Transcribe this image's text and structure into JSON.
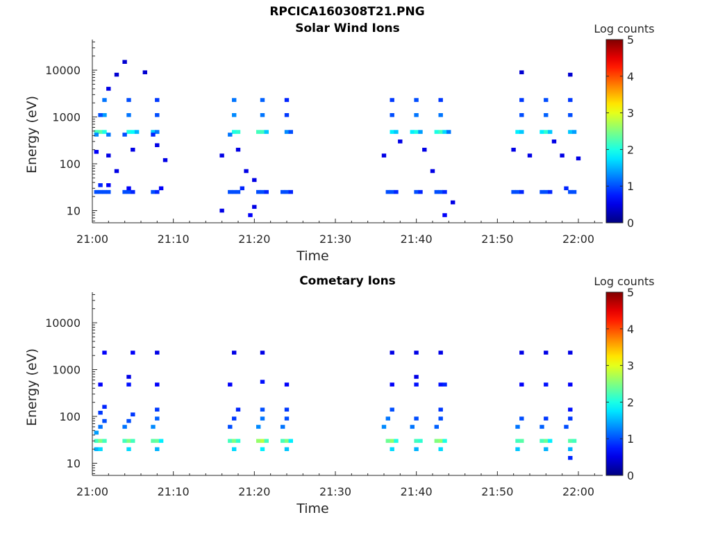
{
  "figure": {
    "title": "RPCICA160308T21.PNG"
  },
  "colors": {
    "axis": "#262626",
    "background": "#ffffff"
  },
  "chart_data": [
    {
      "type": "heatmap",
      "title": "Solar Wind Ions",
      "xlabel": "Time",
      "ylabel": "Energy (eV)",
      "x_ticks": [
        "21:00",
        "21:10",
        "21:20",
        "21:30",
        "21:40",
        "21:50",
        "22:00"
      ],
      "y_ticks": [
        "10",
        "100",
        "1000",
        "10000"
      ],
      "xlim": [
        "21:00",
        "22:03"
      ],
      "ylim": [
        5.5,
        45000
      ],
      "yscale": "log",
      "grid": false,
      "colorbar": {
        "label": "Log counts",
        "ticks": [
          "0",
          "1",
          "2",
          "3",
          "4",
          "5"
        ],
        "range": [
          0,
          5
        ],
        "colormap": "jet"
      },
      "cells": [
        [
          "21:00.5",
          25,
          1
        ],
        [
          "21:01",
          25,
          1
        ],
        [
          "21:01.5",
          25,
          1
        ],
        [
          "21:02",
          25,
          1
        ],
        [
          "21:01",
          35,
          0.8
        ],
        [
          "21:02",
          35,
          0.6
        ],
        [
          "21:04",
          25,
          1
        ],
        [
          "21:04.5",
          25,
          1
        ],
        [
          "21:05",
          25,
          0.8
        ],
        [
          "21:04.5",
          30,
          0.6
        ],
        [
          "21:07.5",
          25,
          1
        ],
        [
          "21:08",
          25,
          0.8
        ],
        [
          "21:08.5",
          30,
          0.6
        ],
        [
          "21:00.5",
          480,
          2.2
        ],
        [
          "21:01",
          480,
          2.3
        ],
        [
          "21:01.5",
          480,
          2.0
        ],
        [
          "21:00.5",
          420,
          1.3
        ],
        [
          "21:02",
          420,
          1.2
        ],
        [
          "21:04.5",
          480,
          2.0
        ],
        [
          "21:05",
          480,
          1.9
        ],
        [
          "21:05.5",
          480,
          1.5
        ],
        [
          "21:04",
          420,
          1.0
        ],
        [
          "21:07.5",
          480,
          1.6
        ],
        [
          "21:08",
          480,
          1.2
        ],
        [
          "21:07.5",
          420,
          0.8
        ],
        [
          "21:01.5",
          1100,
          1.4
        ],
        [
          "21:01",
          1100,
          1.0
        ],
        [
          "21:04.5",
          1100,
          1.2
        ],
        [
          "21:08",
          1100,
          1.0
        ],
        [
          "21:01.5",
          2300,
          1.2
        ],
        [
          "21:04.5",
          2300,
          1.0
        ],
        [
          "21:08",
          2300,
          0.9
        ],
        [
          "21:00.5",
          180,
          0.6
        ],
        [
          "21:02",
          150,
          0.5
        ],
        [
          "21:03",
          70,
          0.5
        ],
        [
          "21:05",
          200,
          0.5
        ],
        [
          "21:08",
          250,
          0.5
        ],
        [
          "21:09",
          120,
          0.5
        ],
        [
          "21:02",
          4000,
          0.5
        ],
        [
          "21:03",
          8000,
          0.4
        ],
        [
          "21:04",
          15000,
          0.4
        ],
        [
          "21:06.5",
          9000,
          0.4
        ],
        [
          "21:17",
          25,
          1
        ],
        [
          "21:17.5",
          25,
          1
        ],
        [
          "21:18",
          25,
          1
        ],
        [
          "21:18.5",
          30,
          0.8
        ],
        [
          "21:20.5",
          25,
          1
        ],
        [
          "21:21",
          25,
          1
        ],
        [
          "21:21.5",
          25,
          0.8
        ],
        [
          "21:23.5",
          25,
          1
        ],
        [
          "21:24",
          25,
          1
        ],
        [
          "21:24.5",
          25,
          0.8
        ],
        [
          "21:17.5",
          480,
          2.0
        ],
        [
          "21:18",
          480,
          2.1
        ],
        [
          "21:17",
          420,
          1.2
        ],
        [
          "21:20.5",
          480,
          2.2
        ],
        [
          "21:21",
          480,
          2.2
        ],
        [
          "21:21.5",
          480,
          1.6
        ],
        [
          "21:24",
          480,
          1.3
        ],
        [
          "21:24.5",
          480,
          1.0
        ],
        [
          "21:17.5",
          1100,
          1.3
        ],
        [
          "21:21",
          1100,
          1.2
        ],
        [
          "21:24",
          1100,
          0.9
        ],
        [
          "21:17.5",
          2300,
          1.2
        ],
        [
          "21:21",
          2300,
          1.1
        ],
        [
          "21:24",
          2300,
          0.8
        ],
        [
          "21:16",
          150,
          0.5
        ],
        [
          "21:18",
          200,
          0.5
        ],
        [
          "21:19",
          70,
          0.5
        ],
        [
          "21:20",
          45,
          0.5
        ],
        [
          "21:16",
          10,
          0.5
        ],
        [
          "21:19.5",
          8,
          0.6
        ],
        [
          "21:20",
          12,
          0.5
        ],
        [
          "21:36.5",
          25,
          1
        ],
        [
          "21:37",
          25,
          1
        ],
        [
          "21:37.5",
          25,
          0.8
        ],
        [
          "21:40",
          25,
          1
        ],
        [
          "21:40.5",
          25,
          0.8
        ],
        [
          "21:42.5",
          25,
          1
        ],
        [
          "21:43",
          25,
          1
        ],
        [
          "21:43.5",
          25,
          0.8
        ],
        [
          "21:37",
          480,
          1.8
        ],
        [
          "21:37.5",
          480,
          1.6
        ],
        [
          "21:39.5",
          480,
          1.8
        ],
        [
          "21:40",
          480,
          2.0
        ],
        [
          "21:40.5",
          480,
          1.4
        ],
        [
          "21:42.5",
          480,
          2.0
        ],
        [
          "21:43",
          480,
          2.2
        ],
        [
          "21:43.5",
          480,
          1.7
        ],
        [
          "21:44",
          480,
          1.2
        ],
        [
          "21:37",
          1100,
          1.0
        ],
        [
          "21:40",
          1100,
          1.2
        ],
        [
          "21:43",
          1100,
          1.2
        ],
        [
          "21:37",
          2300,
          0.9
        ],
        [
          "21:40",
          2300,
          1.0
        ],
        [
          "21:43",
          2300,
          0.9
        ],
        [
          "21:36",
          150,
          0.5
        ],
        [
          "21:38",
          300,
          0.5
        ],
        [
          "21:41",
          200,
          0.5
        ],
        [
          "21:42",
          70,
          0.5
        ],
        [
          "21:44.5",
          15,
          0.5
        ],
        [
          "21:43.5",
          8,
          0.6
        ],
        [
          "21:52",
          25,
          1
        ],
        [
          "21:52.5",
          25,
          1
        ],
        [
          "21:53",
          25,
          0.8
        ],
        [
          "21:55.5",
          25,
          1
        ],
        [
          "21:56",
          25,
          1
        ],
        [
          "21:56.5",
          25,
          0.8
        ],
        [
          "21:59",
          25,
          1
        ],
        [
          "21:59.5",
          25,
          1
        ],
        [
          "21:58.5",
          30,
          0.8
        ],
        [
          "21:52.5",
          480,
          1.8
        ],
        [
          "21:53",
          480,
          1.6
        ],
        [
          "21:55.5",
          480,
          1.8
        ],
        [
          "21:56",
          480,
          2.1
        ],
        [
          "21:56.5",
          480,
          1.6
        ],
        [
          "21:59",
          480,
          1.6
        ],
        [
          "21:59.5",
          480,
          1.4
        ],
        [
          "21:53",
          1100,
          1.0
        ],
        [
          "21:56",
          1100,
          1.1
        ],
        [
          "21:59",
          1100,
          1.0
        ],
        [
          "21:53",
          2300,
          0.9
        ],
        [
          "21:56",
          2300,
          1.0
        ],
        [
          "21:59",
          2300,
          0.9
        ],
        [
          "21:52",
          200,
          0.5
        ],
        [
          "21:54",
          150,
          0.5
        ],
        [
          "21:57",
          300,
          0.5
        ],
        [
          "21:58",
          150,
          0.5
        ],
        [
          "22:00",
          130,
          0.5
        ],
        [
          "21:59",
          8000,
          0.4
        ],
        [
          "21:53",
          9000,
          0.4
        ]
      ]
    },
    {
      "type": "heatmap",
      "title": "Cometary Ions",
      "xlabel": "Time",
      "ylabel": "Energy (eV)",
      "x_ticks": [
        "21:00",
        "21:10",
        "21:20",
        "21:30",
        "21:40",
        "21:50",
        "22:00"
      ],
      "y_ticks": [
        "10",
        "100",
        "1000",
        "10000"
      ],
      "xlim": [
        "21:00",
        "22:03"
      ],
      "ylim": [
        5.5,
        45000
      ],
      "yscale": "log",
      "grid": false,
      "colorbar": {
        "label": "Log counts",
        "ticks": [
          "0",
          "1",
          "2",
          "3",
          "4",
          "5"
        ],
        "range": [
          0,
          5
        ],
        "colormap": "jet"
      },
      "cells": [
        [
          "21:00.5",
          30,
          2.2
        ],
        [
          "21:01",
          30,
          2.5
        ],
        [
          "21:01.5",
          30,
          2.2
        ],
        [
          "21:00.5",
          20,
          1.5
        ],
        [
          "21:01",
          20,
          1.7
        ],
        [
          "21:00.5",
          45,
          1.4
        ],
        [
          "21:01",
          60,
          1.2
        ],
        [
          "21:01.5",
          80,
          1.0
        ],
        [
          "21:01",
          120,
          0.9
        ],
        [
          "21:01.5",
          160,
          0.8
        ],
        [
          "21:01",
          480,
          0.6
        ],
        [
          "21:01.5",
          2300,
          0.6
        ],
        [
          "21:04",
          30,
          2.2
        ],
        [
          "21:04.5",
          30,
          2.5
        ],
        [
          "21:05",
          30,
          2.2
        ],
        [
          "21:04.5",
          20,
          1.7
        ],
        [
          "21:04",
          60,
          1.2
        ],
        [
          "21:04.5",
          80,
          1.0
        ],
        [
          "21:05",
          110,
          0.9
        ],
        [
          "21:04.5",
          480,
          0.7
        ],
        [
          "21:04.5",
          700,
          0.5
        ],
        [
          "21:05",
          2300,
          0.6
        ],
        [
          "21:07.5",
          30,
          2.3
        ],
        [
          "21:08",
          30,
          2.4
        ],
        [
          "21:08.5",
          30,
          1.8
        ],
        [
          "21:08",
          20,
          1.5
        ],
        [
          "21:07.5",
          60,
          1.3
        ],
        [
          "21:08",
          90,
          1.1
        ],
        [
          "21:08",
          140,
          0.9
        ],
        [
          "21:08",
          480,
          0.6
        ],
        [
          "21:08",
          2300,
          0.5
        ],
        [
          "21:17",
          30,
          2.2
        ],
        [
          "21:17.5",
          30,
          2.5
        ],
        [
          "21:18",
          30,
          2.1
        ],
        [
          "21:17.5",
          20,
          1.7
        ],
        [
          "21:17",
          60,
          1.0
        ],
        [
          "21:17.5",
          90,
          0.9
        ],
        [
          "21:18",
          140,
          0.8
        ],
        [
          "21:17",
          480,
          0.6
        ],
        [
          "21:17.5",
          2300,
          0.5
        ],
        [
          "21:20.5",
          30,
          2.6
        ],
        [
          "21:21",
          30,
          2.8
        ],
        [
          "21:21.5",
          30,
          2.2
        ],
        [
          "21:21",
          20,
          1.8
        ],
        [
          "21:20.5",
          60,
          1.3
        ],
        [
          "21:21",
          90,
          1.2
        ],
        [
          "21:21",
          140,
          1.0
        ],
        [
          "21:21",
          550,
          0.7
        ],
        [
          "21:21",
          2300,
          0.5
        ],
        [
          "21:23.5",
          30,
          2.2
        ],
        [
          "21:24",
          30,
          2.5
        ],
        [
          "21:24.5",
          30,
          1.8
        ],
        [
          "21:24",
          20,
          1.6
        ],
        [
          "21:23.5",
          60,
          1.2
        ],
        [
          "21:24",
          90,
          1.0
        ],
        [
          "21:24",
          140,
          0.9
        ],
        [
          "21:24",
          480,
          0.6
        ],
        [
          "21:36.5",
          30,
          2.4
        ],
        [
          "21:37",
          30,
          2.6
        ],
        [
          "21:37.5",
          30,
          2.0
        ],
        [
          "21:37",
          20,
          1.7
        ],
        [
          "21:36",
          60,
          1.3
        ],
        [
          "21:36.5",
          90,
          1.2
        ],
        [
          "21:37",
          140,
          1.0
        ],
        [
          "21:37",
          480,
          0.6
        ],
        [
          "21:37",
          2300,
          0.5
        ],
        [
          "21:40",
          30,
          2.2
        ],
        [
          "21:40.5",
          30,
          2.1
        ],
        [
          "21:40",
          20,
          1.5
        ],
        [
          "21:39.5",
          60,
          1.2
        ],
        [
          "21:40",
          90,
          1.0
        ],
        [
          "21:40",
          480,
          0.7
        ],
        [
          "21:40",
          700,
          0.5
        ],
        [
          "21:40",
          2300,
          0.5
        ],
        [
          "21:42.5",
          30,
          2.5
        ],
        [
          "21:43",
          30,
          2.6
        ],
        [
          "21:43.5",
          30,
          2.0
        ],
        [
          "21:43",
          20,
          1.7
        ],
        [
          "21:42.5",
          60,
          1.1
        ],
        [
          "21:43",
          90,
          1.0
        ],
        [
          "21:43",
          140,
          0.9
        ],
        [
          "21:43",
          480,
          0.7
        ],
        [
          "21:43.5",
          480,
          0.8
        ],
        [
          "21:43",
          2300,
          0.5
        ],
        [
          "21:52.5",
          30,
          2.2
        ],
        [
          "21:53",
          30,
          2.3
        ],
        [
          "21:52.5",
          20,
          1.6
        ],
        [
          "21:52.5",
          60,
          1.2
        ],
        [
          "21:53",
          90,
          1.0
        ],
        [
          "21:53",
          480,
          0.6
        ],
        [
          "21:53",
          2300,
          0.5
        ],
        [
          "21:55.5",
          30,
          2.2
        ],
        [
          "21:56",
          30,
          2.4
        ],
        [
          "21:56.5",
          30,
          1.8
        ],
        [
          "21:56",
          20,
          1.5
        ],
        [
          "21:55.5",
          60,
          1.1
        ],
        [
          "21:56",
          90,
          0.9
        ],
        [
          "21:56",
          480,
          0.7
        ],
        [
          "21:56",
          2300,
          0.5
        ],
        [
          "21:59",
          30,
          2.3
        ],
        [
          "21:59.5",
          30,
          2.2
        ],
        [
          "21:59",
          20,
          1.5
        ],
        [
          "21:59",
          13,
          0.8
        ],
        [
          "21:58.5",
          60,
          1.0
        ],
        [
          "21:59",
          90,
          0.9
        ],
        [
          "21:59",
          140,
          0.7
        ],
        [
          "21:59",
          480,
          0.6
        ],
        [
          "21:59",
          2300,
          0.5
        ]
      ]
    }
  ]
}
